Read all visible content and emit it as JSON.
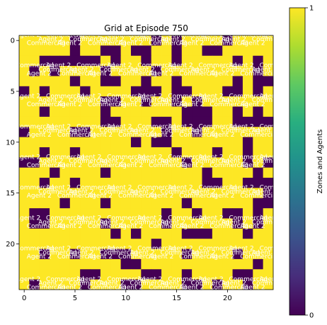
{
  "chart_data": {
    "type": "heatmap",
    "title": "Grid at Episode 750",
    "rows": 25,
    "cols": 25,
    "x_ticks": [
      0,
      5,
      10,
      15,
      20
    ],
    "y_ticks": [
      0,
      5,
      10,
      15,
      20
    ],
    "colorbar": {
      "label": "Zones and Agents",
      "range": [
        0,
        1
      ],
      "ticks": [
        0,
        1
      ],
      "colormap": "viridis"
    },
    "colors": {
      "high": "#fde725",
      "low": "#440154"
    },
    "cell_annotations": [
      "Agent 2",
      "Commercial"
    ],
    "grid": [
      "1111101111111010111101111",
      "1111101100100110110011111",
      "1100000010110110111110101",
      "1010111101111011111111101",
      "1111101100110110111110100",
      "0101110111100010011100101",
      "1111111100110110101111111",
      "1101111101111111000110101",
      "1111111100111001000110000",
      "0111100111111101101111111",
      "1111111111101001111111011",
      "1101101111111110111011011",
      "0011111111111111011111010",
      "1110111101111111110111101",
      "1101101111111111110011000",
      "1111111111111111111111110",
      "1111011101111111011111100",
      "1001111111111101101100101",
      "1001111101111101111110101",
      "1111111110101111000111011",
      "1111111111111011111111111",
      "1101101100011111011110111",
      "1111111111001111111111101",
      "1111110011110011011110011",
      "1011110111001111001011011"
    ]
  }
}
